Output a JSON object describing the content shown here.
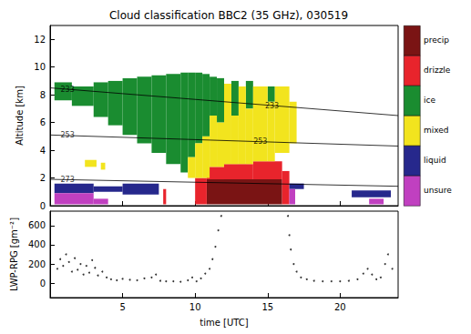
{
  "chart_data": [
    {
      "type": "mask",
      "title": "Cloud classification BBC2 (35 GHz), 030519",
      "y_label": "Altitude [km]",
      "xlim": [
        0,
        24
      ],
      "xticks": [
        5,
        10,
        15,
        20
      ],
      "ylim": [
        0,
        13
      ],
      "yticks": [
        0,
        2,
        4,
        6,
        8,
        10,
        12
      ],
      "tick_labels": "y",
      "legend": "right",
      "series": [
        {
          "name": "precip",
          "color": "#7a1414",
          "boxes": [
            [
              10.8,
              16,
              0.1,
              1.9
            ]
          ]
        },
        {
          "name": "drizzle",
          "color": "#e8242c",
          "boxes": [
            [
              7.8,
              8.0,
              0.1,
              1.2
            ],
            [
              10,
              10.8,
              0.1,
              2.0
            ],
            [
              10.8,
              12,
              1.9,
              2.8
            ],
            [
              12,
              14,
              1.9,
              3.0
            ],
            [
              14,
              16,
              1.9,
              3.2
            ],
            [
              16,
              16.5,
              0.1,
              2.5
            ]
          ]
        },
        {
          "name": "ice",
          "color": "#1a8c30",
          "boxes": [
            [
              0.3,
              1.5,
              7.6,
              8.9
            ],
            [
              1.5,
              3,
              7.2,
              8.6
            ],
            [
              3,
              4,
              6.4,
              8.9
            ],
            [
              4,
              5,
              5.8,
              9.0
            ],
            [
              5,
              6,
              5.1,
              9.2
            ],
            [
              6,
              7,
              4.5,
              9.3
            ],
            [
              7,
              8,
              3.8,
              9.4
            ],
            [
              8,
              9,
              3.0,
              9.5
            ],
            [
              9,
              9.5,
              2.4,
              9.6
            ],
            [
              9.5,
              10,
              3.5,
              9.6
            ],
            [
              10,
              10.5,
              4.5,
              9.6
            ],
            [
              10.5,
              11,
              5.0,
              9.5
            ],
            [
              11,
              11.5,
              6.5,
              9.3
            ],
            [
              11.5,
              12,
              6.0,
              9.2
            ],
            [
              12.5,
              13,
              6.5,
              9.0
            ],
            [
              13.5,
              14,
              7.0,
              9.0
            ],
            [
              15,
              15.5,
              7.5,
              8.6
            ]
          ]
        },
        {
          "name": "mixed",
          "color": "#f2e41e",
          "boxes": [
            [
              2.4,
              3.2,
              2.8,
              3.3
            ],
            [
              3.5,
              3.8,
              2.6,
              3.1
            ],
            [
              9.5,
              10,
              2.0,
              3.5
            ],
            [
              10,
              10.5,
              2.0,
              4.5
            ],
            [
              10.5,
              11,
              2.0,
              5.0
            ],
            [
              11,
              11.5,
              2.8,
              6.5
            ],
            [
              11.5,
              12,
              2.8,
              6.0
            ],
            [
              12,
              12.5,
              3.0,
              8.8
            ],
            [
              12.5,
              13,
              3.0,
              6.5
            ],
            [
              13,
              13.5,
              3.0,
              8.6
            ],
            [
              13.5,
              14,
              3.0,
              7.0
            ],
            [
              14,
              15,
              3.2,
              8.6
            ],
            [
              15,
              15.5,
              3.2,
              7.5
            ],
            [
              15.5,
              16.5,
              3.8,
              8.6
            ],
            [
              16.5,
              17,
              4.5,
              7.5
            ]
          ]
        },
        {
          "name": "liquid",
          "color": "#26288c",
          "boxes": [
            [
              0.3,
              3,
              0.9,
              1.6
            ],
            [
              3,
              5,
              1.0,
              1.4
            ],
            [
              5,
              7.5,
              0.8,
              1.6
            ],
            [
              16.5,
              17.5,
              1.2,
              1.6
            ],
            [
              20.8,
              23.5,
              0.6,
              1.1
            ]
          ]
        },
        {
          "name": "unsure",
          "color": "#c040c0",
          "boxes": [
            [
              0.3,
              3,
              0.1,
              0.9
            ],
            [
              3,
              4,
              0.1,
              0.5
            ],
            [
              16.5,
              16.9,
              0.1,
              1.2
            ],
            [
              22,
              23,
              0.1,
              0.5
            ]
          ]
        }
      ],
      "isotherms": [
        {
          "name": "233",
          "x": [
            0,
            24
          ],
          "values": [
            8.5,
            6.5
          ],
          "labels": [
            [
              1.2,
              8.4
            ],
            [
              15.3,
              7.2
            ]
          ]
        },
        {
          "name": "253",
          "x": [
            0,
            24
          ],
          "values": [
            5.1,
            4.3
          ],
          "labels": [
            [
              1.2,
              5.06
            ],
            [
              14.5,
              4.62
            ]
          ]
        },
        {
          "name": "273",
          "x": [
            0,
            24
          ],
          "values": [
            1.9,
            1.4
          ],
          "labels": [
            [
              1.2,
              1.88
            ]
          ]
        }
      ]
    },
    {
      "type": "scatter",
      "x_label": "time [UTC]",
      "y_label": "LWP-RPG [gm⁻²]",
      "color": "#000000",
      "xlim": [
        0,
        24
      ],
      "xticks": [
        5,
        10,
        15,
        20
      ],
      "ylim": [
        -150,
        750
      ],
      "yticks": [
        0,
        200,
        400,
        600
      ],
      "x": [
        0.5,
        0.7,
        0.9,
        1.1,
        1.3,
        1.5,
        1.7,
        1.9,
        2.1,
        2.3,
        2.5,
        2.7,
        2.9,
        3.1,
        3.3,
        3.6,
        3.9,
        4.2,
        4.6,
        5.0,
        5.5,
        6.0,
        6.5,
        7.0,
        7.3,
        7.6,
        8.0,
        8.5,
        9.0,
        9.5,
        9.8,
        10.1,
        10.4,
        10.7,
        11.0,
        11.2,
        11.4,
        11.6,
        11.8,
        16.4,
        16.5,
        16.6,
        16.8,
        17.0,
        17.3,
        17.7,
        18.2,
        18.8,
        19.4,
        20.0,
        20.6,
        21.2,
        21.6,
        21.9,
        22.2,
        22.5,
        22.8,
        23.1,
        23.3,
        23.6
      ],
      "values": [
        150,
        250,
        180,
        300,
        220,
        120,
        260,
        140,
        200,
        90,
        180,
        110,
        240,
        160,
        80,
        120,
        60,
        40,
        30,
        45,
        35,
        30,
        50,
        60,
        90,
        25,
        20,
        20,
        15,
        30,
        60,
        20,
        50,
        100,
        150,
        250,
        380,
        550,
        700,
        700,
        500,
        350,
        200,
        120,
        60,
        40,
        25,
        20,
        20,
        20,
        25,
        40,
        100,
        150,
        90,
        40,
        60,
        200,
        300,
        150
      ]
    }
  ]
}
